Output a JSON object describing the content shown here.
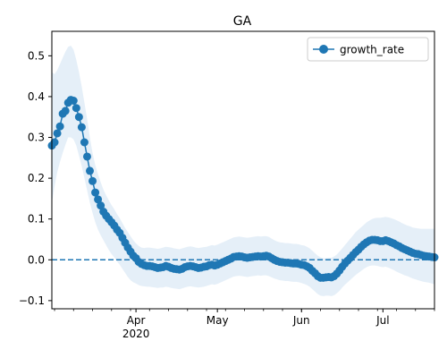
{
  "chart_data": {
    "type": "line",
    "title": "GA",
    "xlabel": "",
    "ylabel": "",
    "x_range": [
      "2020-03-01",
      "2020-07-20"
    ],
    "ylim": [
      -0.12,
      0.56
    ],
    "y_ticks": [
      -0.1,
      0.0,
      0.1,
      0.2,
      0.3,
      0.4,
      0.5
    ],
    "y_tick_labels": [
      "−0.1",
      "0.0",
      "0.1",
      "0.2",
      "0.3",
      "0.4",
      "0.5"
    ],
    "x_major_ticks": [
      {
        "date": "2020-04-01",
        "label": "Apr",
        "sublabel": "2020"
      },
      {
        "date": "2020-05-01",
        "label": "May",
        "sublabel": ""
      },
      {
        "date": "2020-06-01",
        "label": "Jun",
        "sublabel": ""
      },
      {
        "date": "2020-07-01",
        "label": "Jul",
        "sublabel": ""
      }
    ],
    "grid": false,
    "legend": {
      "placement": "top-right",
      "entries": [
        "growth_rate"
      ]
    },
    "reference_line": {
      "y": 0,
      "style": "dashed"
    },
    "colors": {
      "line": "#1f77b4",
      "band": "#c6dbef"
    },
    "series": [
      {
        "name": "growth_rate",
        "x": [
          "2020-03-01",
          "2020-03-02",
          "2020-03-03",
          "2020-03-04",
          "2020-03-05",
          "2020-03-06",
          "2020-03-07",
          "2020-03-08",
          "2020-03-09",
          "2020-03-10",
          "2020-03-11",
          "2020-03-12",
          "2020-03-13",
          "2020-03-14",
          "2020-03-15",
          "2020-03-16",
          "2020-03-17",
          "2020-03-18",
          "2020-03-19",
          "2020-03-20",
          "2020-03-21",
          "2020-03-22",
          "2020-03-23",
          "2020-03-24",
          "2020-03-25",
          "2020-03-26",
          "2020-03-27",
          "2020-03-28",
          "2020-03-29",
          "2020-03-30",
          "2020-03-31",
          "2020-04-01",
          "2020-04-02",
          "2020-04-03",
          "2020-04-04",
          "2020-04-05",
          "2020-04-06",
          "2020-04-07",
          "2020-04-08",
          "2020-04-09",
          "2020-04-10",
          "2020-04-11",
          "2020-04-12",
          "2020-04-13",
          "2020-04-14",
          "2020-04-15",
          "2020-04-16",
          "2020-04-17",
          "2020-04-18",
          "2020-04-19",
          "2020-04-20",
          "2020-04-21",
          "2020-04-22",
          "2020-04-23",
          "2020-04-24",
          "2020-04-25",
          "2020-04-26",
          "2020-04-27",
          "2020-04-28",
          "2020-04-29",
          "2020-04-30",
          "2020-05-01",
          "2020-05-02",
          "2020-05-03",
          "2020-05-04",
          "2020-05-05",
          "2020-05-06",
          "2020-05-07",
          "2020-05-08",
          "2020-05-09",
          "2020-05-10",
          "2020-05-11",
          "2020-05-12",
          "2020-05-13",
          "2020-05-14",
          "2020-05-15",
          "2020-05-16",
          "2020-05-17",
          "2020-05-18",
          "2020-05-19",
          "2020-05-20",
          "2020-05-21",
          "2020-05-22",
          "2020-05-23",
          "2020-05-24",
          "2020-05-25",
          "2020-05-26",
          "2020-05-27",
          "2020-05-28",
          "2020-05-29",
          "2020-05-30",
          "2020-05-31",
          "2020-06-01",
          "2020-06-02",
          "2020-06-03",
          "2020-06-04",
          "2020-06-05",
          "2020-06-06",
          "2020-06-07",
          "2020-06-08",
          "2020-06-09",
          "2020-06-10",
          "2020-06-11",
          "2020-06-12",
          "2020-06-13",
          "2020-06-14",
          "2020-06-15",
          "2020-06-16",
          "2020-06-17",
          "2020-06-18",
          "2020-06-19",
          "2020-06-20",
          "2020-06-21",
          "2020-06-22",
          "2020-06-23",
          "2020-06-24",
          "2020-06-25",
          "2020-06-26",
          "2020-06-27",
          "2020-06-28",
          "2020-06-29",
          "2020-06-30",
          "2020-07-01",
          "2020-07-02",
          "2020-07-03",
          "2020-07-04",
          "2020-07-05",
          "2020-07-06",
          "2020-07-07",
          "2020-07-08",
          "2020-07-09",
          "2020-07-10",
          "2020-07-11",
          "2020-07-12",
          "2020-07-13",
          "2020-07-14",
          "2020-07-15",
          "2020-07-16",
          "2020-07-17",
          "2020-07-18",
          "2020-07-19",
          "2020-07-20"
        ],
        "values": [
          0.28,
          0.288,
          0.31,
          0.327,
          0.358,
          0.365,
          0.385,
          0.392,
          0.39,
          0.372,
          0.35,
          0.325,
          0.288,
          0.253,
          0.218,
          0.193,
          0.165,
          0.148,
          0.133,
          0.118,
          0.108,
          0.1,
          0.092,
          0.084,
          0.074,
          0.066,
          0.054,
          0.042,
          0.03,
          0.02,
          0.01,
          0.004,
          -0.005,
          -0.01,
          -0.013,
          -0.015,
          -0.015,
          -0.016,
          -0.018,
          -0.02,
          -0.019,
          -0.018,
          -0.015,
          -0.017,
          -0.02,
          -0.022,
          -0.023,
          -0.024,
          -0.022,
          -0.018,
          -0.016,
          -0.015,
          -0.016,
          -0.018,
          -0.02,
          -0.019,
          -0.017,
          -0.016,
          -0.013,
          -0.012,
          -0.014,
          -0.012,
          -0.009,
          -0.006,
          -0.003,
          0.0,
          0.003,
          0.007,
          0.008,
          0.009,
          0.008,
          0.006,
          0.005,
          0.006,
          0.007,
          0.008,
          0.009,
          0.008,
          0.009,
          0.01,
          0.008,
          0.004,
          0.0,
          -0.003,
          -0.005,
          -0.006,
          -0.007,
          -0.007,
          -0.008,
          -0.009,
          -0.009,
          -0.01,
          -0.012,
          -0.013,
          -0.016,
          -0.02,
          -0.027,
          -0.033,
          -0.04,
          -0.044,
          -0.044,
          -0.043,
          -0.042,
          -0.043,
          -0.04,
          -0.034,
          -0.026,
          -0.017,
          -0.009,
          -0.002,
          0.005,
          0.012,
          0.019,
          0.025,
          0.032,
          0.038,
          0.043,
          0.047,
          0.049,
          0.049,
          0.048,
          0.046,
          0.046,
          0.048,
          0.046,
          0.043,
          0.04,
          0.036,
          0.033,
          0.029,
          0.026,
          0.023,
          0.02,
          0.017,
          0.015,
          0.014,
          0.012,
          0.01,
          0.009,
          0.008,
          0.007,
          0.006
        ],
        "lower": [
          0.14,
          0.18,
          0.215,
          0.24,
          0.262,
          0.282,
          0.3,
          0.3,
          0.295,
          0.28,
          0.255,
          0.23,
          0.2,
          0.17,
          0.14,
          0.115,
          0.092,
          0.074,
          0.06,
          0.048,
          0.036,
          0.024,
          0.014,
          0.006,
          -0.004,
          -0.012,
          -0.022,
          -0.032,
          -0.042,
          -0.05,
          -0.055,
          -0.058,
          -0.062,
          -0.064,
          -0.065,
          -0.066,
          -0.066,
          -0.067,
          -0.068,
          -0.069,
          -0.068,
          -0.068,
          -0.066,
          -0.067,
          -0.069,
          -0.07,
          -0.071,
          -0.072,
          -0.07,
          -0.068,
          -0.066,
          -0.065,
          -0.066,
          -0.067,
          -0.068,
          -0.067,
          -0.066,
          -0.064,
          -0.062,
          -0.06,
          -0.061,
          -0.059,
          -0.056,
          -0.053,
          -0.05,
          -0.047,
          -0.044,
          -0.041,
          -0.04,
          -0.039,
          -0.04,
          -0.041,
          -0.042,
          -0.041,
          -0.04,
          -0.039,
          -0.038,
          -0.039,
          -0.038,
          -0.038,
          -0.04,
          -0.043,
          -0.046,
          -0.048,
          -0.05,
          -0.051,
          -0.052,
          -0.052,
          -0.053,
          -0.054,
          -0.054,
          -0.055,
          -0.057,
          -0.059,
          -0.062,
          -0.066,
          -0.072,
          -0.078,
          -0.084,
          -0.088,
          -0.089,
          -0.088,
          -0.088,
          -0.089,
          -0.087,
          -0.082,
          -0.076,
          -0.068,
          -0.061,
          -0.055,
          -0.049,
          -0.043,
          -0.037,
          -0.032,
          -0.027,
          -0.022,
          -0.018,
          -0.015,
          -0.014,
          -0.014,
          -0.015,
          -0.017,
          -0.018,
          -0.017,
          -0.019,
          -0.022,
          -0.025,
          -0.029,
          -0.032,
          -0.035,
          -0.038,
          -0.04,
          -0.043,
          -0.046,
          -0.048,
          -0.05,
          -0.052,
          -0.054,
          -0.055,
          -0.056,
          -0.058,
          -0.06
        ],
        "upper": [
          0.46,
          0.455,
          0.465,
          0.48,
          0.495,
          0.51,
          0.522,
          0.525,
          0.515,
          0.49,
          0.46,
          0.425,
          0.385,
          0.345,
          0.3,
          0.262,
          0.232,
          0.21,
          0.19,
          0.172,
          0.158,
          0.146,
          0.134,
          0.124,
          0.112,
          0.102,
          0.09,
          0.078,
          0.068,
          0.058,
          0.048,
          0.04,
          0.034,
          0.03,
          0.029,
          0.03,
          0.03,
          0.029,
          0.028,
          0.027,
          0.028,
          0.03,
          0.032,
          0.031,
          0.03,
          0.028,
          0.027,
          0.026,
          0.028,
          0.03,
          0.032,
          0.033,
          0.032,
          0.03,
          0.029,
          0.03,
          0.031,
          0.032,
          0.034,
          0.036,
          0.035,
          0.037,
          0.04,
          0.043,
          0.046,
          0.049,
          0.052,
          0.055,
          0.056,
          0.057,
          0.056,
          0.055,
          0.054,
          0.055,
          0.056,
          0.057,
          0.058,
          0.057,
          0.058,
          0.058,
          0.056,
          0.052,
          0.048,
          0.045,
          0.043,
          0.042,
          0.041,
          0.041,
          0.04,
          0.039,
          0.039,
          0.038,
          0.036,
          0.035,
          0.032,
          0.028,
          0.022,
          0.016,
          0.01,
          0.006,
          0.004,
          0.004,
          0.005,
          0.005,
          0.008,
          0.013,
          0.02,
          0.028,
          0.036,
          0.044,
          0.052,
          0.06,
          0.068,
          0.074,
          0.08,
          0.086,
          0.092,
          0.096,
          0.1,
          0.102,
          0.103,
          0.103,
          0.104,
          0.105,
          0.104,
          0.102,
          0.1,
          0.097,
          0.094,
          0.09,
          0.087,
          0.084,
          0.082,
          0.079,
          0.078,
          0.077,
          0.076,
          0.076,
          0.076,
          0.076,
          0.076,
          0.076
        ]
      }
    ]
  }
}
